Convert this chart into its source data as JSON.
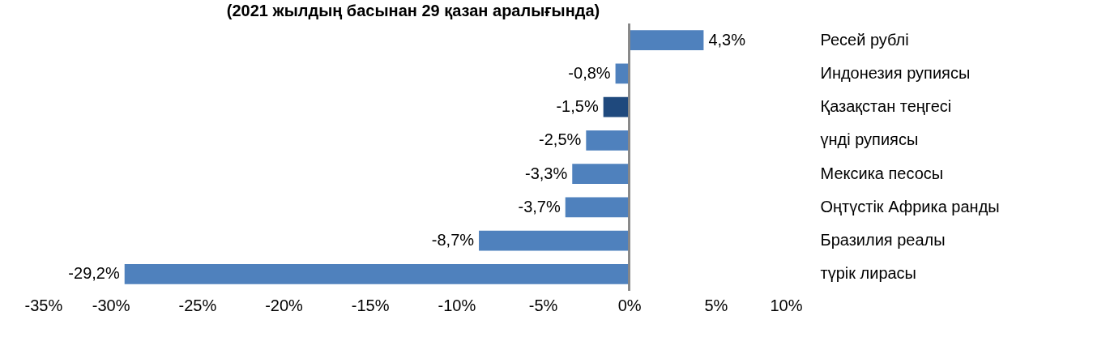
{
  "chart_data": {
    "type": "bar",
    "orientation": "horizontal",
    "title": "(2021 жылдың басынан 29 қазан аралығында)",
    "categories": [
      "Ресей рублі",
      "Индонезия рупиясы",
      "Қазақстан теңгесі",
      "үнді рупиясы",
      "Мексика песосы",
      "Оңтүстік Африка ранды",
      "Бразилия реалы",
      "түрік лирасы"
    ],
    "values": [
      4.3,
      -0.8,
      -1.5,
      -2.5,
      -3.3,
      -3.7,
      -8.7,
      -29.2
    ],
    "colors": [
      "#4f81bd",
      "#4f81bd",
      "#1f497d",
      "#4f81bd",
      "#4f81bd",
      "#4f81bd",
      "#4f81bd",
      "#4f81bd"
    ],
    "value_labels": [
      "4,3%",
      "-0,8%",
      "-1,5%",
      "-2,5%",
      "-3,3%",
      "-3,7%",
      "-8,7%",
      "-29,2%"
    ],
    "xlim": [
      -35,
      10
    ],
    "xticks": [
      {
        "value": -35,
        "label": "-35%"
      },
      {
        "value": -30,
        "label": "-30%"
      },
      {
        "value": -25,
        "label": "-25%"
      },
      {
        "value": -20,
        "label": "-20%"
      },
      {
        "value": -15,
        "label": "-15%"
      },
      {
        "value": -10,
        "label": "-10%"
      },
      {
        "value": -5,
        "label": "-5%"
      },
      {
        "value": 0,
        "label": "0%"
      },
      {
        "value": 5,
        "label": "5%"
      },
      {
        "value": 10,
        "label": "10%"
      }
    ]
  }
}
